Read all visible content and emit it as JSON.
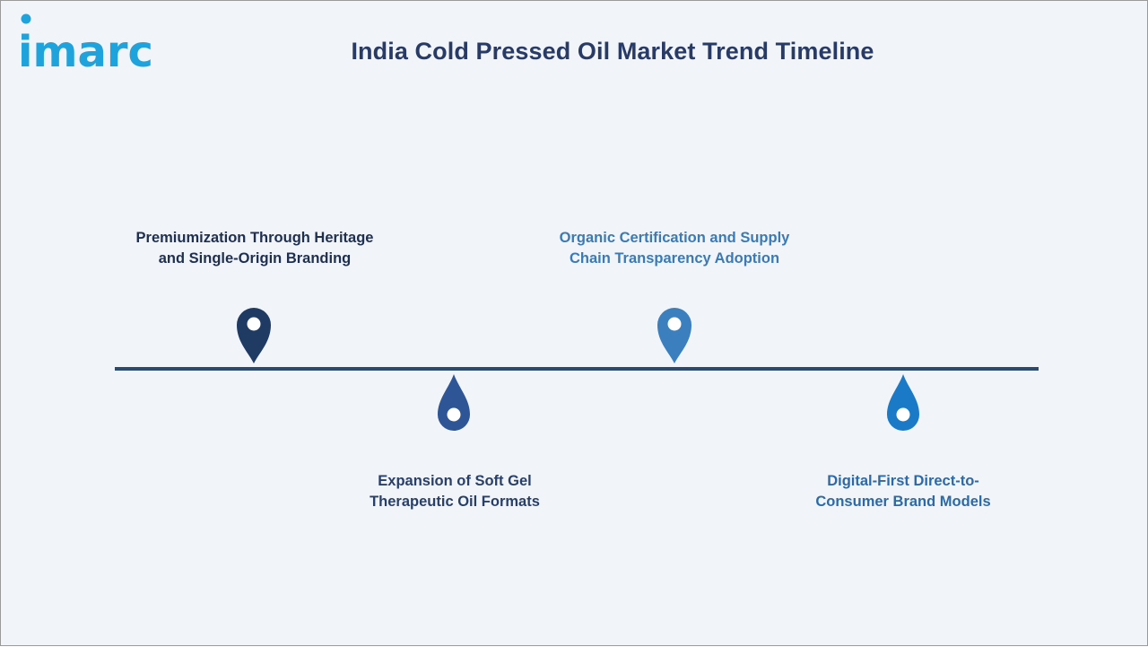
{
  "header": {
    "logo_text": "imarc",
    "title": "India Cold Pressed Oil Market Trend Timeline"
  },
  "timeline": {
    "line_color": "#2c4a6e",
    "items": [
      {
        "lines": [
          "Premiumization Through Heritage",
          "and Single-Origin Branding"
        ],
        "color": "#1f3a63",
        "text_color": "#1e2f50",
        "marker": "map-pin-icon",
        "placement": "above"
      },
      {
        "lines": [
          "Expansion of Soft Gel",
          "Therapeutic Oil Formats"
        ],
        "color": "#2e5595",
        "text_color": "#283f69",
        "marker": "drop-icon",
        "placement": "below"
      },
      {
        "lines": [
          "Organic Certification and Supply",
          "Chain Transparency Adoption"
        ],
        "color": "#3b7fbf",
        "text_color": "#3a7ab5",
        "marker": "map-pin-icon",
        "placement": "above"
      },
      {
        "lines": [
          "Digital-First Direct-to-",
          "Consumer Brand Models"
        ],
        "color": "#1b7ac8",
        "text_color": "#2c6aa7",
        "marker": "drop-icon",
        "placement": "below"
      }
    ]
  }
}
